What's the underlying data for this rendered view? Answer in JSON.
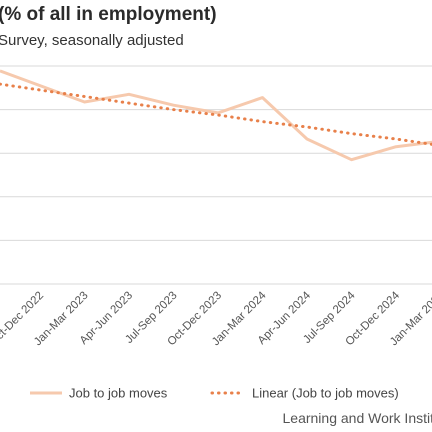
{
  "chart_data": {
    "type": "line",
    "title": "(% of all in employment)",
    "subtitle": "Survey, seasonally adjusted",
    "categories": [
      "Oct-Dec 2022",
      "Jan-Mar 2023",
      "Apr-Jun 2023",
      "Jul-Sep 2023",
      "Oct-Dec 2023",
      "Jan-Mar 2024",
      "Apr-Jun 2024",
      "Jul-Sep 2024",
      "Oct-Dec 2024",
      "Jan-Mar 2025"
    ],
    "first_tick_fragment": "22",
    "ylim": [
      0,
      10
    ],
    "grid": true,
    "series": [
      {
        "name": "Job to job moves",
        "color": "#f6c9ad",
        "style": "solid",
        "values": [
          9.1,
          8.35,
          8.7,
          8.2,
          7.85,
          8.55,
          6.65,
          5.7,
          6.3,
          6.55
        ]
      },
      {
        "name": "Linear (Job to job moves)",
        "color": "#e8804a",
        "style": "dotted",
        "values": [
          8.9,
          8.6,
          8.3,
          8.0,
          7.75,
          7.45,
          7.2,
          6.9,
          6.65,
          6.35
        ]
      }
    ],
    "legend_position": "bottom"
  },
  "source": "Learning and Work Instit"
}
